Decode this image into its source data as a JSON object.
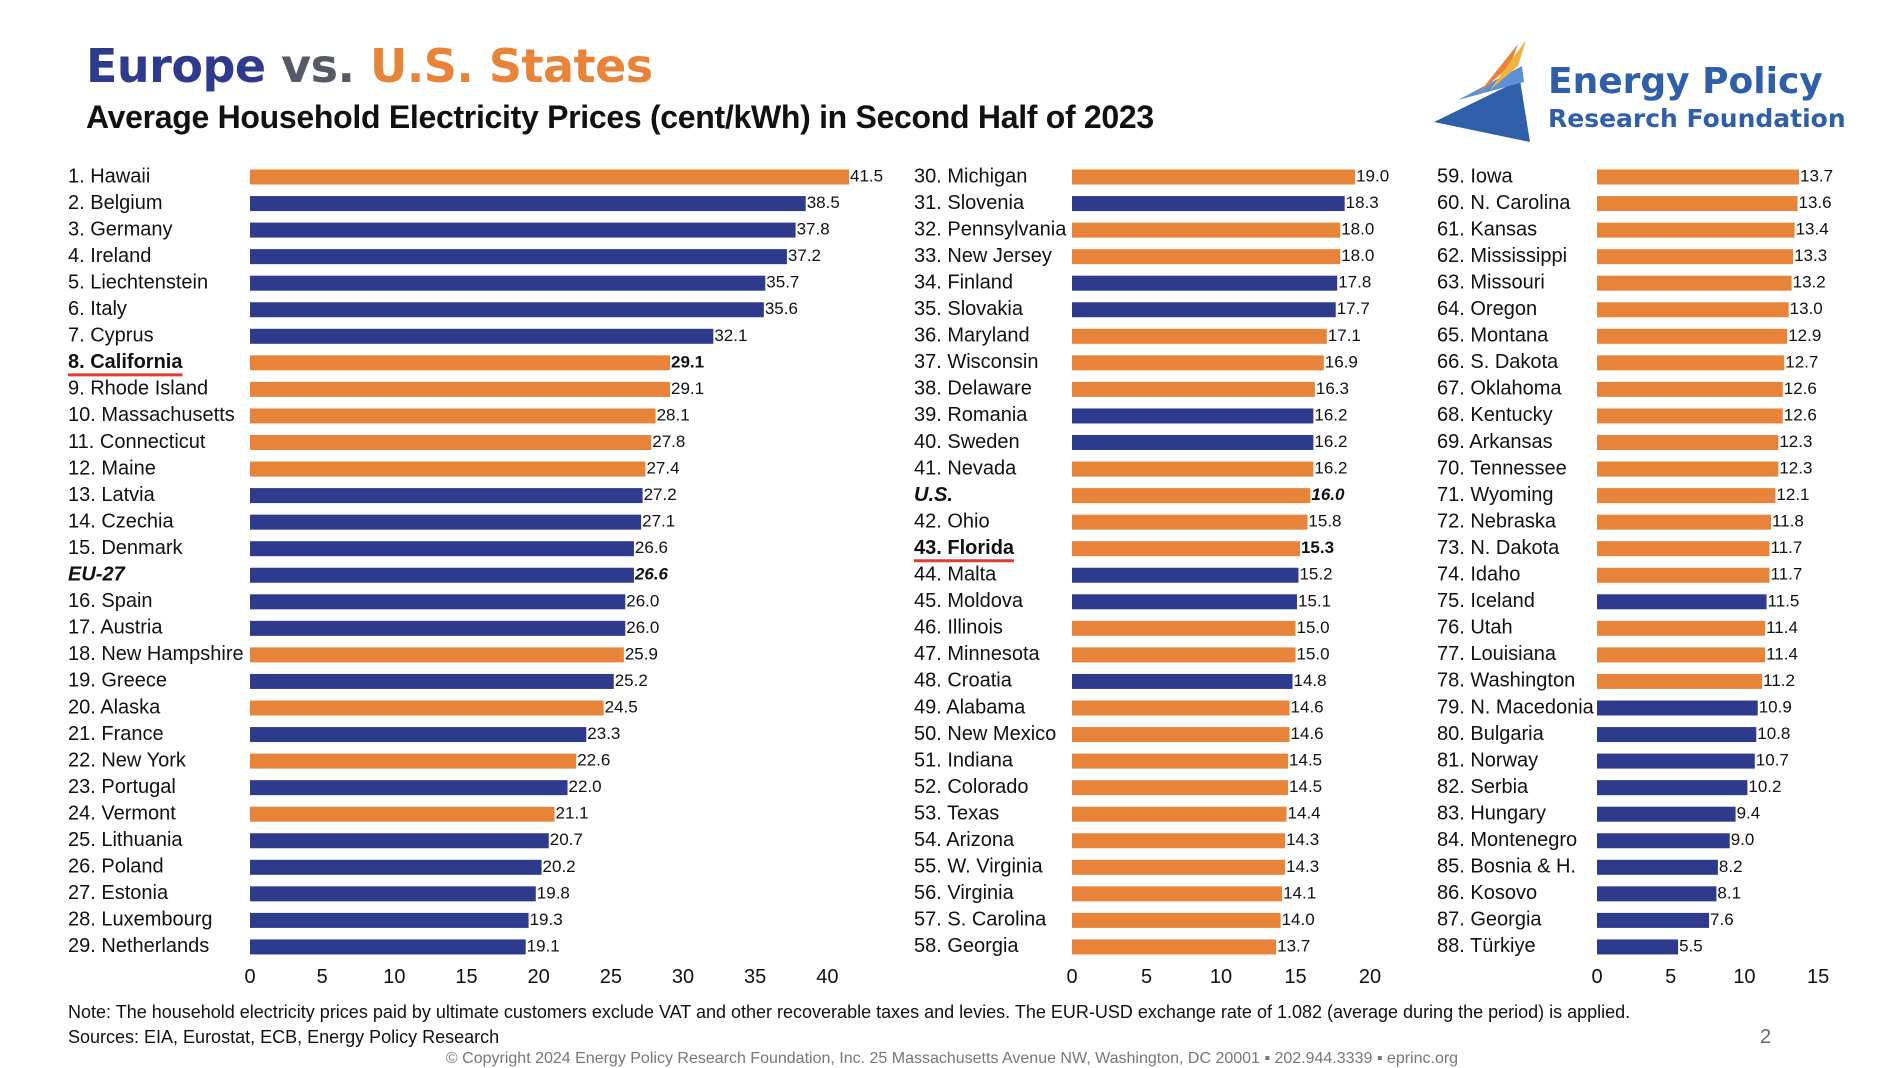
{
  "header": {
    "title_europe": "Europe",
    "title_vs": "vs.",
    "title_us": "U.S. States",
    "subtitle": "Average Household Electricity Prices (cent/kWh) in Second Half of 2023"
  },
  "logo": {
    "line1": "Energy Policy",
    "line2": "Research Foundation",
    "icon": "triangle-swoosh-icon"
  },
  "chart_data": {
    "type": "bar",
    "orientation": "horizontal",
    "title": "Average Household Electricity Prices (cent/kWh) in Second Half of 2023",
    "unit": "cent/kWh",
    "colors": {
      "us": "#e8843a",
      "europe": "#2e3a8c",
      "highlight_underline": "#e03c31"
    },
    "panels": [
      {
        "xlim": [
          0,
          41.5
        ],
        "ticks": [
          0,
          5,
          10,
          15,
          20,
          25,
          30,
          35,
          40
        ],
        "items": [
          {
            "label": "1. Hawaii",
            "value": 41.5,
            "value_label": "41.5",
            "region": "us"
          },
          {
            "label": "2. Belgium",
            "value": 38.5,
            "value_label": "38.5",
            "region": "europe"
          },
          {
            "label": "3. Germany",
            "value": 37.8,
            "value_label": "37.8",
            "region": "europe"
          },
          {
            "label": "4. Ireland",
            "value": 37.2,
            "value_label": "37.2",
            "region": "europe"
          },
          {
            "label": "5. Liechtenstein",
            "value": 35.7,
            "value_label": "35.7",
            "region": "europe"
          },
          {
            "label": "6. Italy",
            "value": 35.6,
            "value_label": "35.6",
            "region": "europe"
          },
          {
            "label": "7. Cyprus",
            "value": 32.1,
            "value_label": "32.1",
            "region": "europe"
          },
          {
            "label": "8. California",
            "value": 29.1,
            "value_label": "29.1",
            "region": "us",
            "highlight": true
          },
          {
            "label": "9. Rhode Island",
            "value": 29.1,
            "value_label": "29.1",
            "region": "us"
          },
          {
            "label": "10. Massachusetts",
            "value": 28.1,
            "value_label": "28.1",
            "region": "us"
          },
          {
            "label": "11. Connecticut",
            "value": 27.8,
            "value_label": "27.8",
            "region": "us"
          },
          {
            "label": "12. Maine",
            "value": 27.4,
            "value_label": "27.4",
            "region": "us"
          },
          {
            "label": "13. Latvia",
            "value": 27.2,
            "value_label": "27.2",
            "region": "europe"
          },
          {
            "label": "14. Czechia",
            "value": 27.1,
            "value_label": "27.1",
            "region": "europe"
          },
          {
            "label": "15. Denmark",
            "value": 26.6,
            "value_label": "26.6",
            "region": "europe"
          },
          {
            "label": "EU-27",
            "value": 26.6,
            "value_label": "26.6",
            "region": "europe",
            "aggregate": true
          },
          {
            "label": "16. Spain",
            "value": 26.0,
            "value_label": "26.0",
            "region": "europe"
          },
          {
            "label": "17. Austria",
            "value": 26.0,
            "value_label": "26.0",
            "region": "europe"
          },
          {
            "label": "18. New Hampshire",
            "value": 25.9,
            "value_label": "25.9",
            "region": "us"
          },
          {
            "label": "19. Greece",
            "value": 25.2,
            "value_label": "25.2",
            "region": "europe"
          },
          {
            "label": "20. Alaska",
            "value": 24.5,
            "value_label": "24.5",
            "region": "us"
          },
          {
            "label": "21. France",
            "value": 23.3,
            "value_label": "23.3",
            "region": "europe"
          },
          {
            "label": "22. New York",
            "value": 22.6,
            "value_label": "22.6",
            "region": "us"
          },
          {
            "label": "23. Portugal",
            "value": 22.0,
            "value_label": "22.0",
            "region": "europe"
          },
          {
            "label": "24. Vermont",
            "value": 21.1,
            "value_label": "21.1",
            "region": "us"
          },
          {
            "label": "25. Lithuania",
            "value": 20.7,
            "value_label": "20.7",
            "region": "europe"
          },
          {
            "label": "26. Poland",
            "value": 20.2,
            "value_label": "20.2",
            "region": "europe"
          },
          {
            "label": "27. Estonia",
            "value": 19.8,
            "value_label": "19.8",
            "region": "europe"
          },
          {
            "label": "28. Luxembourg",
            "value": 19.3,
            "value_label": "19.3",
            "region": "europe"
          },
          {
            "label": "29. Netherlands",
            "value": 19.1,
            "value_label": "19.1",
            "region": "europe"
          }
        ]
      },
      {
        "xlim": [
          0,
          20
        ],
        "ticks": [
          0,
          5,
          10,
          15,
          20
        ],
        "items": [
          {
            "label": "30. Michigan",
            "value": 19.0,
            "value_label": "19.0",
            "region": "us"
          },
          {
            "label": "31. Slovenia",
            "value": 18.3,
            "value_label": "18.3",
            "region": "europe"
          },
          {
            "label": "32. Pennsylvania",
            "value": 18.0,
            "value_label": "18.0",
            "region": "us"
          },
          {
            "label": "33. New Jersey",
            "value": 18.0,
            "value_label": "18.0",
            "region": "us"
          },
          {
            "label": "34. Finland",
            "value": 17.8,
            "value_label": "17.8",
            "region": "europe"
          },
          {
            "label": "35. Slovakia",
            "value": 17.7,
            "value_label": "17.7",
            "region": "europe"
          },
          {
            "label": "36. Maryland",
            "value": 17.1,
            "value_label": "17.1",
            "region": "us"
          },
          {
            "label": "37. Wisconsin",
            "value": 16.9,
            "value_label": "16.9",
            "region": "us"
          },
          {
            "label": "38. Delaware",
            "value": 16.3,
            "value_label": "16.3",
            "region": "us"
          },
          {
            "label": "39. Romania",
            "value": 16.2,
            "value_label": "16.2",
            "region": "europe"
          },
          {
            "label": "40. Sweden",
            "value": 16.2,
            "value_label": "16.2",
            "region": "europe"
          },
          {
            "label": "41. Nevada",
            "value": 16.2,
            "value_label": "16.2",
            "region": "us"
          },
          {
            "label": "U.S.",
            "value": 16.0,
            "value_label": "16.0",
            "region": "us",
            "aggregate": true
          },
          {
            "label": "42. Ohio",
            "value": 15.8,
            "value_label": "15.8",
            "region": "us"
          },
          {
            "label": "43. Florida",
            "value": 15.3,
            "value_label": "15.3",
            "region": "us",
            "highlight": true
          },
          {
            "label": "44. Malta",
            "value": 15.2,
            "value_label": "15.2",
            "region": "europe"
          },
          {
            "label": "45. Moldova",
            "value": 15.1,
            "value_label": "15.1",
            "region": "europe"
          },
          {
            "label": "46. Illinois",
            "value": 15.0,
            "value_label": "15.0",
            "region": "us"
          },
          {
            "label": "47. Minnesota",
            "value": 15.0,
            "value_label": "15.0",
            "region": "us"
          },
          {
            "label": "48. Croatia",
            "value": 14.8,
            "value_label": "14.8",
            "region": "europe"
          },
          {
            "label": "49. Alabama",
            "value": 14.6,
            "value_label": "14.6",
            "region": "us"
          },
          {
            "label": "50. New Mexico",
            "value": 14.6,
            "value_label": "14.6",
            "region": "us"
          },
          {
            "label": "51. Indiana",
            "value": 14.5,
            "value_label": "14.5",
            "region": "us"
          },
          {
            "label": "52. Colorado",
            "value": 14.5,
            "value_label": "14.5",
            "region": "us"
          },
          {
            "label": "53. Texas",
            "value": 14.4,
            "value_label": "14.4",
            "region": "us"
          },
          {
            "label": "54. Arizona",
            "value": 14.3,
            "value_label": "14.3",
            "region": "us"
          },
          {
            "label": "55. W. Virginia",
            "value": 14.3,
            "value_label": "14.3",
            "region": "us"
          },
          {
            "label": "56. Virginia",
            "value": 14.1,
            "value_label": "14.1",
            "region": "us"
          },
          {
            "label": "57. S. Carolina",
            "value": 14.0,
            "value_label": "14.0",
            "region": "us"
          },
          {
            "label": "58. Georgia",
            "value": 13.7,
            "value_label": "13.7",
            "region": "us"
          }
        ]
      },
      {
        "xlim": [
          0,
          13.7
        ],
        "ticks": [
          0,
          5,
          10,
          15
        ],
        "items": [
          {
            "label": "59. Iowa",
            "value": 13.7,
            "value_label": "13.7",
            "region": "us"
          },
          {
            "label": "60. N. Carolina",
            "value": 13.6,
            "value_label": "13.6",
            "region": "us"
          },
          {
            "label": "61. Kansas",
            "value": 13.4,
            "value_label": "13.4",
            "region": "us"
          },
          {
            "label": "62. Mississippi",
            "value": 13.3,
            "value_label": "13.3",
            "region": "us"
          },
          {
            "label": "63. Missouri",
            "value": 13.2,
            "value_label": "13.2",
            "region": "us"
          },
          {
            "label": "64. Oregon",
            "value": 13.0,
            "value_label": "13.0",
            "region": "us"
          },
          {
            "label": "65. Montana",
            "value": 12.9,
            "value_label": "12.9",
            "region": "us"
          },
          {
            "label": "66. S. Dakota",
            "value": 12.7,
            "value_label": "12.7",
            "region": "us"
          },
          {
            "label": "67. Oklahoma",
            "value": 12.6,
            "value_label": "12.6",
            "region": "us"
          },
          {
            "label": "68. Kentucky",
            "value": 12.6,
            "value_label": "12.6",
            "region": "us"
          },
          {
            "label": "69. Arkansas",
            "value": 12.3,
            "value_label": "12.3",
            "region": "us"
          },
          {
            "label": "70. Tennessee",
            "value": 12.3,
            "value_label": "12.3",
            "region": "us"
          },
          {
            "label": "71. Wyoming",
            "value": 12.1,
            "value_label": "12.1",
            "region": "us"
          },
          {
            "label": "72. Nebraska",
            "value": 11.8,
            "value_label": "11.8",
            "region": "us"
          },
          {
            "label": "73. N. Dakota",
            "value": 11.7,
            "value_label": "11.7",
            "region": "us"
          },
          {
            "label": "74. Idaho",
            "value": 11.7,
            "value_label": "11.7",
            "region": "us"
          },
          {
            "label": "75. Iceland",
            "value": 11.5,
            "value_label": "11.5",
            "region": "europe"
          },
          {
            "label": "76. Utah",
            "value": 11.4,
            "value_label": "11.4",
            "region": "us"
          },
          {
            "label": "77. Louisiana",
            "value": 11.4,
            "value_label": "11.4",
            "region": "us"
          },
          {
            "label": "78. Washington",
            "value": 11.2,
            "value_label": "11.2",
            "region": "us"
          },
          {
            "label": "79. N. Macedonia",
            "value": 10.9,
            "value_label": "10.9",
            "region": "europe"
          },
          {
            "label": "80. Bulgaria",
            "value": 10.8,
            "value_label": "10.8",
            "region": "europe"
          },
          {
            "label": "81. Norway",
            "value": 10.7,
            "value_label": "10.7",
            "region": "europe"
          },
          {
            "label": "82. Serbia",
            "value": 10.2,
            "value_label": "10.2",
            "region": "europe"
          },
          {
            "label": "83. Hungary",
            "value": 9.4,
            "value_label": "9.4",
            "region": "europe"
          },
          {
            "label": "84. Montenegro",
            "value": 9.0,
            "value_label": "9.0",
            "region": "europe"
          },
          {
            "label": "85. Bosnia & H.",
            "value": 8.2,
            "value_label": "8.2",
            "region": "europe"
          },
          {
            "label": "86. Kosovo",
            "value": 8.1,
            "value_label": "8.1",
            "region": "europe"
          },
          {
            "label": "87. Georgia",
            "value": 7.6,
            "value_label": "7.6",
            "region": "europe"
          },
          {
            "label": "88. Türkiye",
            "value": 5.5,
            "value_label": "5.5",
            "region": "europe"
          }
        ]
      }
    ]
  },
  "footer": {
    "note": "Note: The household electricity prices paid by ultimate customers exclude VAT and other recoverable taxes and levies. The EUR-USD exchange rate of 1.082 (average during the period) is applied.",
    "sources": "Sources: EIA, Eurostat, ECB, Energy Policy Research",
    "page_number": "2",
    "copyright": "© Copyright 2024 Energy Policy Research Foundation, Inc. 25 Massachusetts Avenue NW, Washington, DC 20001 ▪ 202.944.3339 ▪ eprinc.org"
  }
}
